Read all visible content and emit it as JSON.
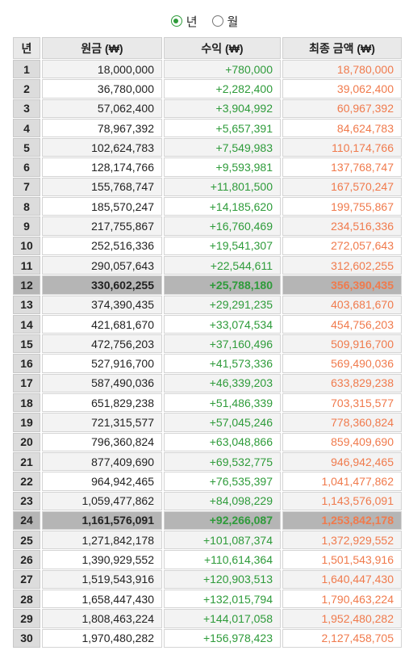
{
  "period_toggle": {
    "year_label": "년",
    "month_label": "월",
    "selected": "year"
  },
  "headers": {
    "year": "년",
    "principal": "원금 (₩)",
    "profit": "수익 (₩)",
    "final": "최종 금액 (₩)"
  },
  "rows": [
    {
      "year": "1",
      "principal": "18,000,000",
      "profit": "+780,000",
      "final": "18,780,000",
      "highlight": false
    },
    {
      "year": "2",
      "principal": "36,780,000",
      "profit": "+2,282,400",
      "final": "39,062,400",
      "highlight": false
    },
    {
      "year": "3",
      "principal": "57,062,400",
      "profit": "+3,904,992",
      "final": "60,967,392",
      "highlight": false
    },
    {
      "year": "4",
      "principal": "78,967,392",
      "profit": "+5,657,391",
      "final": "84,624,783",
      "highlight": false
    },
    {
      "year": "5",
      "principal": "102,624,783",
      "profit": "+7,549,983",
      "final": "110,174,766",
      "highlight": false
    },
    {
      "year": "6",
      "principal": "128,174,766",
      "profit": "+9,593,981",
      "final": "137,768,747",
      "highlight": false
    },
    {
      "year": "7",
      "principal": "155,768,747",
      "profit": "+11,801,500",
      "final": "167,570,247",
      "highlight": false
    },
    {
      "year": "8",
      "principal": "185,570,247",
      "profit": "+14,185,620",
      "final": "199,755,867",
      "highlight": false
    },
    {
      "year": "9",
      "principal": "217,755,867",
      "profit": "+16,760,469",
      "final": "234,516,336",
      "highlight": false
    },
    {
      "year": "10",
      "principal": "252,516,336",
      "profit": "+19,541,307",
      "final": "272,057,643",
      "highlight": false
    },
    {
      "year": "11",
      "principal": "290,057,643",
      "profit": "+22,544,611",
      "final": "312,602,255",
      "highlight": false
    },
    {
      "year": "12",
      "principal": "330,602,255",
      "profit": "+25,788,180",
      "final": "356,390,435",
      "highlight": true
    },
    {
      "year": "13",
      "principal": "374,390,435",
      "profit": "+29,291,235",
      "final": "403,681,670",
      "highlight": false
    },
    {
      "year": "14",
      "principal": "421,681,670",
      "profit": "+33,074,534",
      "final": "454,756,203",
      "highlight": false
    },
    {
      "year": "15",
      "principal": "472,756,203",
      "profit": "+37,160,496",
      "final": "509,916,700",
      "highlight": false
    },
    {
      "year": "16",
      "principal": "527,916,700",
      "profit": "+41,573,336",
      "final": "569,490,036",
      "highlight": false
    },
    {
      "year": "17",
      "principal": "587,490,036",
      "profit": "+46,339,203",
      "final": "633,829,238",
      "highlight": false
    },
    {
      "year": "18",
      "principal": "651,829,238",
      "profit": "+51,486,339",
      "final": "703,315,577",
      "highlight": false
    },
    {
      "year": "19",
      "principal": "721,315,577",
      "profit": "+57,045,246",
      "final": "778,360,824",
      "highlight": false
    },
    {
      "year": "20",
      "principal": "796,360,824",
      "profit": "+63,048,866",
      "final": "859,409,690",
      "highlight": false
    },
    {
      "year": "21",
      "principal": "877,409,690",
      "profit": "+69,532,775",
      "final": "946,942,465",
      "highlight": false
    },
    {
      "year": "22",
      "principal": "964,942,465",
      "profit": "+76,535,397",
      "final": "1,041,477,862",
      "highlight": false
    },
    {
      "year": "23",
      "principal": "1,059,477,862",
      "profit": "+84,098,229",
      "final": "1,143,576,091",
      "highlight": false
    },
    {
      "year": "24",
      "principal": "1,161,576,091",
      "profit": "+92,266,087",
      "final": "1,253,842,178",
      "highlight": true
    },
    {
      "year": "25",
      "principal": "1,271,842,178",
      "profit": "+101,087,374",
      "final": "1,372,929,552",
      "highlight": false
    },
    {
      "year": "26",
      "principal": "1,390,929,552",
      "profit": "+110,614,364",
      "final": "1,501,543,916",
      "highlight": false
    },
    {
      "year": "27",
      "principal": "1,519,543,916",
      "profit": "+120,903,513",
      "final": "1,640,447,430",
      "highlight": false
    },
    {
      "year": "28",
      "principal": "1,658,447,430",
      "profit": "+132,015,794",
      "final": "1,790,463,224",
      "highlight": false
    },
    {
      "year": "29",
      "principal": "1,808,463,224",
      "profit": "+144,017,058",
      "final": "1,952,480,282",
      "highlight": false
    },
    {
      "year": "30",
      "principal": "1,970,480,282",
      "profit": "+156,978,423",
      "final": "2,127,458,705",
      "highlight": false
    }
  ],
  "colors": {
    "profit": "#2e9b3a",
    "final": "#f07a4c",
    "highlight_row": "#b5b5b5",
    "radio_selected": "#2e9b3a"
  }
}
